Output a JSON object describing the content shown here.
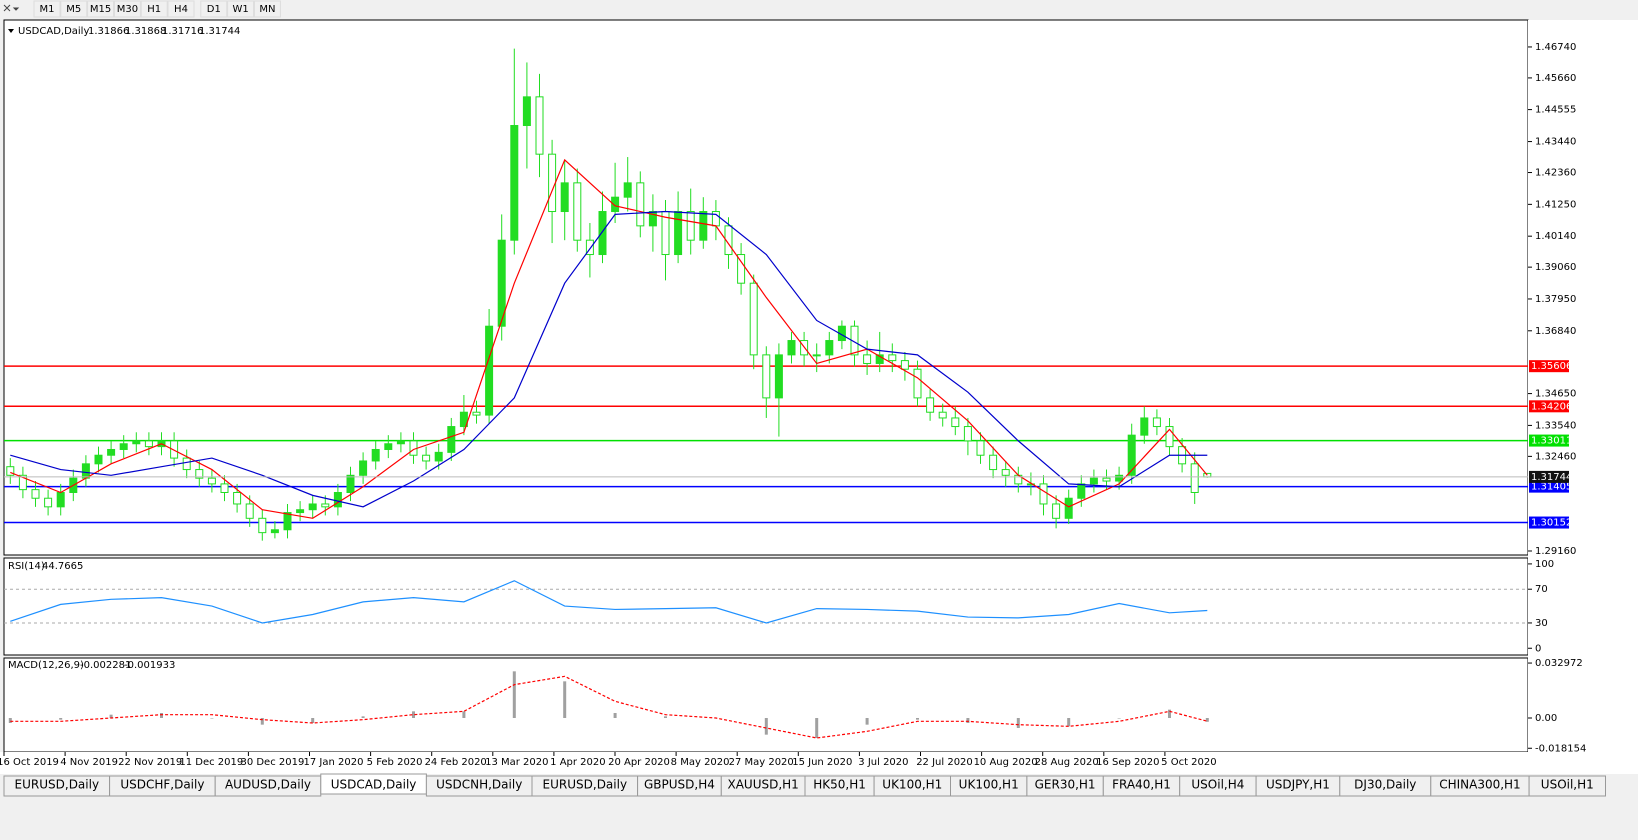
{
  "chart_data": {
    "type": "candlestick",
    "symbol": "USDCAD,Daily",
    "timeframes": [
      "M1",
      "M5",
      "M15",
      "M30",
      "H1",
      "H4",
      "D1",
      "W1",
      "MN"
    ],
    "tabs": [
      "EURUSD,Daily",
      "USDCHF,Daily",
      "AUDUSD,Daily",
      "USDCAD,Daily",
      "USDCNH,Daily",
      "EURUSD,Daily",
      "GBPUSD,H4",
      "XAUUSD,H1",
      "HK50,H1",
      "UK100,H1",
      "UK100,H1",
      "GER30,H1",
      "FRA40,H1",
      "USOil,H4",
      "USDJPY,H1",
      "DJ30,Daily",
      "CHINA300,H1",
      "USOil,H1"
    ],
    "active_tab": 3,
    "candle_color": "#22dd22",
    "candles": {
      "open": [
        1.321,
        1.318,
        1.313,
        1.31,
        1.307,
        1.312,
        1.317,
        1.322,
        1.325,
        1.327,
        1.329,
        1.33,
        1.328,
        1.33,
        1.324,
        1.32,
        1.317,
        1.315,
        1.312,
        1.308,
        1.303,
        1.298,
        1.299,
        1.305,
        1.306,
        1.308,
        1.307,
        1.312,
        1.318,
        1.323,
        1.327,
        1.329,
        1.33,
        1.325,
        1.323,
        1.326,
        1.335,
        1.34,
        1.339,
        1.37,
        1.4,
        1.44,
        1.45,
        1.43,
        1.41,
        1.42,
        1.4,
        1.395,
        1.41,
        1.415,
        1.42,
        1.405,
        1.41,
        1.395,
        1.41,
        1.4,
        1.41,
        1.405,
        1.395,
        1.385,
        1.36,
        1.345,
        1.36,
        1.365,
        1.36,
        1.36,
        1.365,
        1.37,
        1.36,
        1.357,
        1.36,
        1.358,
        1.355,
        1.345,
        1.34,
        1.338,
        1.335,
        1.33,
        1.325,
        1.32,
        1.318,
        1.315,
        1.315,
        1.308,
        1.303,
        1.31,
        1.315,
        1.317,
        1.316,
        1.318,
        1.332,
        1.338,
        1.335,
        1.328,
        1.322,
        1.31866
      ],
      "high": [
        1.324,
        1.321,
        1.316,
        1.313,
        1.315,
        1.32,
        1.325,
        1.328,
        1.33,
        1.332,
        1.333,
        1.333,
        1.333,
        1.333,
        1.327,
        1.323,
        1.32,
        1.318,
        1.315,
        1.311,
        1.306,
        1.302,
        1.308,
        1.309,
        1.311,
        1.311,
        1.315,
        1.321,
        1.326,
        1.33,
        1.332,
        1.333,
        1.333,
        1.328,
        1.329,
        1.338,
        1.346,
        1.344,
        1.376,
        1.409,
        1.4668,
        1.462,
        1.458,
        1.435,
        1.428,
        1.425,
        1.406,
        1.417,
        1.427,
        1.429,
        1.424,
        1.416,
        1.414,
        1.417,
        1.418,
        1.415,
        1.414,
        1.408,
        1.399,
        1.388,
        1.363,
        1.364,
        1.368,
        1.368,
        1.364,
        1.368,
        1.372,
        1.372,
        1.365,
        1.368,
        1.364,
        1.361,
        1.358,
        1.348,
        1.343,
        1.342,
        1.338,
        1.333,
        1.328,
        1.323,
        1.321,
        1.319,
        1.318,
        1.311,
        1.313,
        1.318,
        1.32,
        1.32,
        1.321,
        1.336,
        1.342,
        1.341,
        1.338,
        1.331,
        1.326,
        1.31868
      ],
      "low": [
        1.315,
        1.31,
        1.307,
        1.304,
        1.304,
        1.309,
        1.314,
        1.319,
        1.322,
        1.324,
        1.326,
        1.325,
        1.325,
        1.321,
        1.317,
        1.314,
        1.312,
        1.309,
        1.305,
        1.3,
        1.2952,
        1.296,
        1.296,
        1.302,
        1.303,
        1.304,
        1.304,
        1.309,
        1.315,
        1.32,
        1.324,
        1.326,
        1.322,
        1.32,
        1.32,
        1.323,
        1.332,
        1.336,
        1.336,
        1.365,
        1.395,
        1.425,
        1.422,
        1.399,
        1.4,
        1.396,
        1.387,
        1.392,
        1.406,
        1.41,
        1.401,
        1.396,
        1.386,
        1.392,
        1.395,
        1.397,
        1.4,
        1.39,
        1.381,
        1.355,
        1.338,
        1.3315,
        1.357,
        1.356,
        1.354,
        1.357,
        1.362,
        1.356,
        1.353,
        1.354,
        1.354,
        1.351,
        1.342,
        1.337,
        1.335,
        1.332,
        1.325,
        1.322,
        1.317,
        1.314,
        1.312,
        1.311,
        1.304,
        1.2995,
        1.301,
        1.307,
        1.312,
        1.313,
        1.313,
        1.315,
        1.329,
        1.332,
        1.325,
        1.319,
        1.308,
        1.31716
      ],
      "close": [
        1.318,
        1.313,
        1.31,
        1.307,
        1.312,
        1.317,
        1.322,
        1.325,
        1.327,
        1.329,
        1.33,
        1.328,
        1.33,
        1.324,
        1.32,
        1.317,
        1.315,
        1.312,
        1.308,
        1.303,
        1.298,
        1.299,
        1.305,
        1.306,
        1.308,
        1.307,
        1.312,
        1.318,
        1.323,
        1.327,
        1.329,
        1.33,
        1.325,
        1.323,
        1.326,
        1.335,
        1.34,
        1.339,
        1.37,
        1.4,
        1.44,
        1.45,
        1.43,
        1.41,
        1.42,
        1.4,
        1.395,
        1.41,
        1.415,
        1.42,
        1.405,
        1.41,
        1.395,
        1.41,
        1.4,
        1.41,
        1.405,
        1.395,
        1.385,
        1.36,
        1.345,
        1.36,
        1.365,
        1.36,
        1.36,
        1.365,
        1.37,
        1.36,
        1.357,
        1.36,
        1.358,
        1.355,
        1.345,
        1.34,
        1.338,
        1.335,
        1.33,
        1.325,
        1.32,
        1.318,
        1.315,
        1.315,
        1.308,
        1.303,
        1.31,
        1.315,
        1.317,
        1.316,
        1.318,
        1.332,
        1.338,
        1.335,
        1.328,
        1.322,
        1.312,
        1.31744
      ]
    },
    "ylim": [
      1.2902,
      1.4768
    ],
    "yticks": [
      {
        "value": 1.4674,
        "label": "1.46740"
      },
      {
        "value": 1.4566,
        "label": "1.45660"
      },
      1.44555,
      {
        "value": 1.4344,
        "label": "1.43440"
      },
      {
        "value": 1.4236,
        "label": "1.42360"
      },
      {
        "value": 1.4125,
        "label": "1.41250"
      },
      {
        "value": 1.4014,
        "label": "1.40140"
      },
      {
        "value": 1.3906,
        "label": "1.39060"
      },
      {
        "value": 1.3795,
        "label": "1.37950"
      },
      {
        "value": 1.3684,
        "label": "1.36840"
      },
      {
        "value": 1.3465,
        "label": "1.34650"
      },
      {
        "value": 1.3354,
        "label": "1.33540"
      },
      {
        "value": 1.3246,
        "label": "1.32460"
      },
      {
        "value": 1.2916,
        "label": "1.29160"
      }
    ],
    "levels": [
      {
        "value": 1.35606,
        "color": "#ff0000"
      },
      {
        "value": 1.34206,
        "color": "#ff0000"
      },
      {
        "value": 1.33011,
        "color": "#00e000"
      },
      {
        "value": 1.31405,
        "color": "#0000ff"
      },
      {
        "value": 1.30152,
        "color": "#0000ff"
      }
    ],
    "sample_index": [
      0,
      4,
      8,
      12,
      16,
      20,
      24,
      28,
      32,
      36,
      40,
      44,
      48,
      52,
      56,
      60,
      64,
      68,
      72,
      76,
      80,
      84,
      88,
      92,
      95
    ],
    "moving_averages": [
      {
        "color": "#ff0000",
        "values": [
          1.319,
          1.312,
          1.322,
          1.329,
          1.32,
          1.306,
          1.303,
          1.314,
          1.327,
          1.333,
          1.385,
          1.428,
          1.412,
          1.408,
          1.405,
          1.38,
          1.357,
          1.362,
          1.352,
          1.337,
          1.318,
          1.307,
          1.315,
          1.334,
          1.318
        ]
      },
      {
        "color": "#0000cc",
        "values": [
          1.325,
          1.32,
          1.318,
          1.321,
          1.324,
          1.318,
          1.311,
          1.307,
          1.316,
          1.327,
          1.345,
          1.385,
          1.409,
          1.41,
          1.409,
          1.395,
          1.372,
          1.362,
          1.36,
          1.347,
          1.33,
          1.315,
          1.314,
          1.325,
          1.325
        ]
      }
    ],
    "x_labels": [
      "16 Oct 2019",
      "4 Nov 2019",
      "22 Nov 2019",
      "11 Dec 2019",
      "30 Dec 2019",
      "17 Jan 2020",
      "5 Feb 2020",
      "24 Feb 2020",
      "13 Mar 2020",
      "1 Apr 2020",
      "20 Apr 2020",
      "8 May 2020",
      "27 May 2020",
      "15 Jun 2020",
      "3 Jul 2020",
      "22 Jul 2020",
      "10 Aug 2020",
      "28 Aug 2020",
      "16 Sep 2020",
      "5 Oct 2020"
    ],
    "rsi": {
      "label": "RSI(14)",
      "color": "#1e90ff",
      "values": [
        32,
        52,
        58,
        60,
        50,
        30,
        40,
        55,
        60,
        55,
        80,
        50,
        46,
        47,
        48,
        30,
        47,
        46,
        44,
        37,
        36,
        40,
        53,
        42,
        44.7665
      ],
      "ylim": [
        -8,
        107
      ],
      "yticks": [
        100,
        70,
        30,
        0
      ],
      "levels": [
        70,
        30
      ]
    },
    "macd": {
      "label": "MACD(12,26,9)",
      "histogram_color": "#a0a0a0",
      "signal_color": "#ff0000",
      "histogram": [
        -0.003,
        -0.001,
        0.002,
        0.003,
        0.0,
        -0.004,
        -0.003,
        0.001,
        0.004,
        0.004,
        0.028,
        0.022,
        0.003,
        0.001,
        0.0,
        -0.01,
        -0.012,
        -0.004,
        -0.001,
        -0.003,
        -0.006,
        -0.005,
        0.0,
        0.005,
        -0.002281
      ],
      "signal": [
        -0.002,
        -0.002,
        0.0,
        0.002,
        0.002,
        -0.001,
        -0.003,
        -0.001,
        0.002,
        0.004,
        0.02,
        0.025,
        0.01,
        0.002,
        0.0,
        -0.006,
        -0.012,
        -0.008,
        -0.002,
        -0.002,
        -0.004,
        -0.005,
        -0.002,
        0.004,
        -0.001933
      ],
      "ylim": [
        -0.0204,
        0.036
      ],
      "yticks": [
        0.032972,
        {
          "value": 0,
          "label": "0.00"
        },
        -0.018154
      ]
    }
  }
}
